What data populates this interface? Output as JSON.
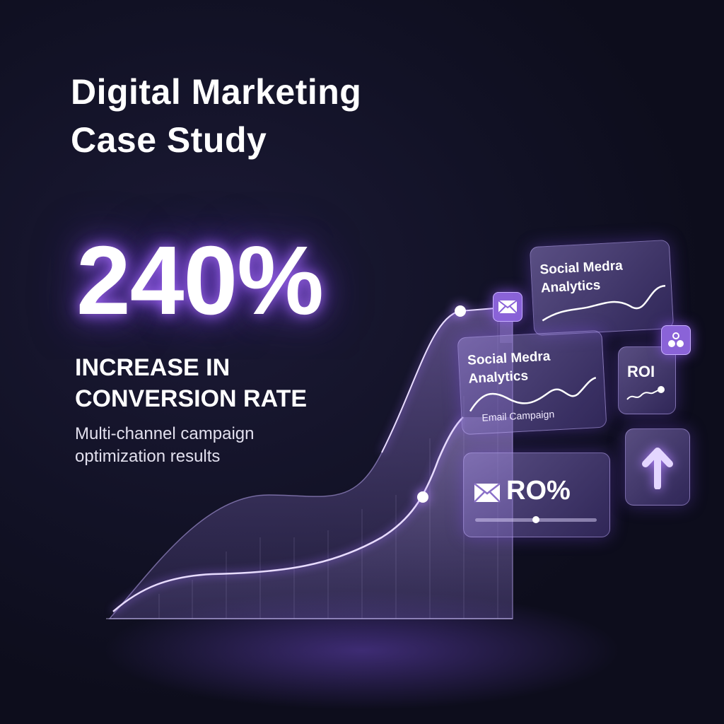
{
  "title": {
    "line1": "Digital Marketing",
    "line2": "Case Study"
  },
  "headline": {
    "value": "240%",
    "label_line1": "INCREASE IN",
    "label_line2": "CONVERSION RATE",
    "description_line1": "Multi-channel campaign",
    "description_line2": "optimization results"
  },
  "cards": {
    "analytics_top": {
      "line1": "Social Medra",
      "line2": "Analytics"
    },
    "analytics_mid": {
      "line1": "Social Medra",
      "line2": "Analytics",
      "caption": "Email Campaign"
    },
    "roi": {
      "label": "ROI"
    },
    "ro_percent": {
      "label": "RO%",
      "slider_level": 0.5
    }
  },
  "icons": [
    "mail-icon",
    "people-icon",
    "arrow-up-icon"
  ],
  "colors": {
    "accent": "#9b6cf0",
    "background": "#121226"
  }
}
